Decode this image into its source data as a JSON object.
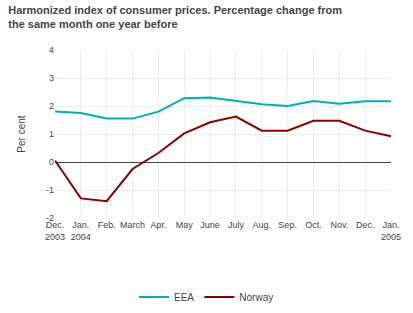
{
  "chart_data": {
    "type": "line",
    "title": "Harmonized index of consumer prices. Percentage change from\nthe same month one year before",
    "y_label": "Per cent",
    "categories": [
      "Dec.\n2003",
      "Jan.\n2004",
      "Feb.",
      "March",
      "Apr.",
      "May",
      "June",
      "July",
      "Aug.",
      "Sep.",
      "Oct.",
      "Nov.",
      "Dec.",
      "Jan.\n2005"
    ],
    "series": [
      {
        "name": "EEA",
        "color": "#00b0b0",
        "values": [
          1.8,
          1.75,
          1.55,
          1.55,
          1.8,
          2.28,
          2.3,
          2.18,
          2.06,
          2.0,
          2.18,
          2.08,
          2.17,
          2.17
        ]
      },
      {
        "name": "Norway",
        "color": "#8b0000",
        "values": [
          0.05,
          -1.3,
          -1.4,
          -0.25,
          0.32,
          1.02,
          1.42,
          1.62,
          1.12,
          1.12,
          1.47,
          1.47,
          1.12,
          0.92
        ]
      }
    ],
    "ylim": [
      -2,
      4
    ],
    "yticks": [
      -2,
      -1,
      0,
      1,
      2,
      3,
      4
    ],
    "grid": true,
    "legend": "bottom"
  }
}
